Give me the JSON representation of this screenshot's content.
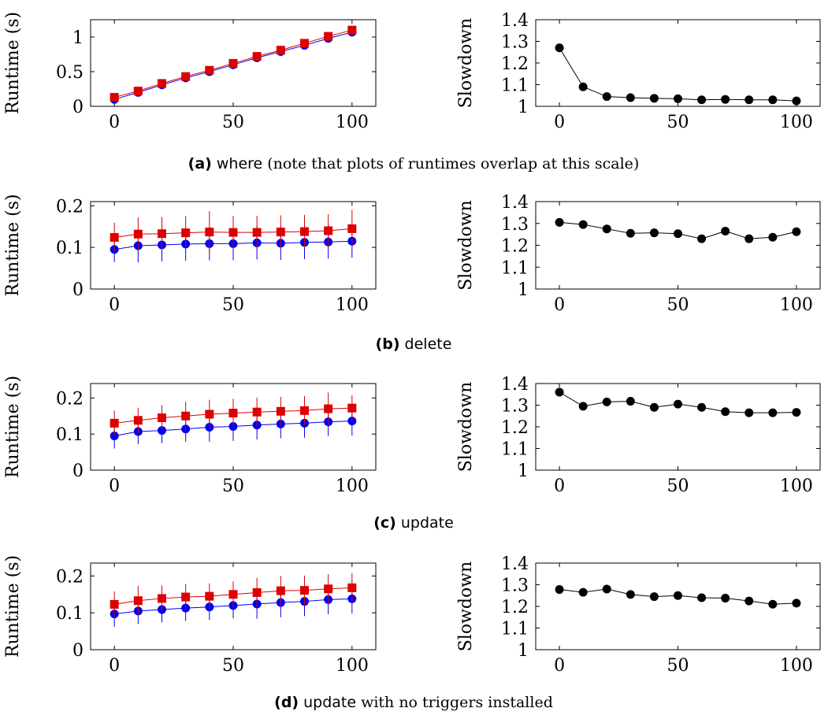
{
  "chart_data": [
    {
      "type": "line",
      "ylabel": "Runtime (s)",
      "x": [
        0,
        10,
        20,
        30,
        40,
        50,
        60,
        70,
        80,
        90,
        100
      ],
      "xticks": [
        0,
        50,
        100
      ],
      "xlim": [
        -10,
        110
      ],
      "ylim": [
        0,
        1.25
      ],
      "yticks": [
        0,
        0.5,
        1
      ],
      "ytick_labels": [
        "0",
        "0.5",
        "1"
      ],
      "series": [
        {
          "color": "#0000ee",
          "marker": "circle",
          "values": [
            0.1,
            0.2,
            0.31,
            0.41,
            0.5,
            0.6,
            0.7,
            0.79,
            0.88,
            0.98,
            1.07
          ],
          "err": [
            0,
            0,
            0,
            0,
            0,
            0,
            0,
            0,
            0,
            0,
            0
          ]
        },
        {
          "color": "#dd0000",
          "marker": "square",
          "values": [
            0.13,
            0.22,
            0.33,
            0.43,
            0.52,
            0.62,
            0.72,
            0.81,
            0.91,
            1.01,
            1.1
          ],
          "err": [
            0,
            0,
            0,
            0,
            0,
            0,
            0,
            0,
            0,
            0,
            0
          ]
        }
      ]
    },
    {
      "type": "line",
      "ylabel": "Slowdown",
      "x": [
        0,
        10,
        20,
        30,
        40,
        50,
        60,
        70,
        80,
        90,
        100
      ],
      "xticks": [
        0,
        50,
        100
      ],
      "xlim": [
        -10,
        110
      ],
      "ylim": [
        1,
        1.4
      ],
      "yticks": [
        1,
        1.1,
        1.2,
        1.3,
        1.4
      ],
      "ytick_labels": [
        "1",
        "1.1",
        "1.2",
        "1.3",
        "1.4"
      ],
      "series": [
        {
          "color": "#000000",
          "marker": "circle",
          "values": [
            1.27,
            1.09,
            1.045,
            1.04,
            1.037,
            1.035,
            1.03,
            1.032,
            1.03,
            1.03,
            1.025
          ]
        }
      ]
    },
    {
      "type": "line",
      "ylabel": "Runtime (s)",
      "x": [
        0,
        10,
        20,
        30,
        40,
        50,
        60,
        70,
        80,
        90,
        100
      ],
      "xticks": [
        0,
        50,
        100
      ],
      "xlim": [
        -10,
        110
      ],
      "ylim": [
        0,
        0.21
      ],
      "yticks": [
        0,
        0.1,
        0.2
      ],
      "ytick_labels": [
        "0",
        "0.1",
        "0.2"
      ],
      "series": [
        {
          "color": "#0000ee",
          "marker": "circle",
          "values": [
            0.095,
            0.104,
            0.106,
            0.108,
            0.109,
            0.109,
            0.111,
            0.11,
            0.112,
            0.113,
            0.115
          ],
          "err": [
            0.03,
            0.04,
            0.04,
            0.04,
            0.04,
            0.04,
            0.04,
            0.04,
            0.04,
            0.04,
            0.04
          ]
        },
        {
          "color": "#dd0000",
          "marker": "square",
          "values": [
            0.124,
            0.132,
            0.133,
            0.135,
            0.137,
            0.136,
            0.136,
            0.137,
            0.138,
            0.14,
            0.145
          ],
          "err": [
            0.035,
            0.04,
            0.04,
            0.04,
            0.05,
            0.04,
            0.04,
            0.04,
            0.04,
            0.04,
            0.045
          ]
        }
      ]
    },
    {
      "type": "line",
      "ylabel": "Slowdown",
      "x": [
        0,
        10,
        20,
        30,
        40,
        50,
        60,
        70,
        80,
        90,
        100
      ],
      "xticks": [
        0,
        50,
        100
      ],
      "xlim": [
        -10,
        110
      ],
      "ylim": [
        1,
        1.4
      ],
      "yticks": [
        1,
        1.1,
        1.2,
        1.3,
        1.4
      ],
      "ytick_labels": [
        "1",
        "1.1",
        "1.2",
        "1.3",
        "1.4"
      ],
      "series": [
        {
          "color": "#000000",
          "marker": "circle",
          "values": [
            1.305,
            1.295,
            1.275,
            1.255,
            1.257,
            1.253,
            1.23,
            1.265,
            1.23,
            1.237,
            1.262
          ]
        }
      ]
    },
    {
      "type": "line",
      "ylabel": "Runtime (s)",
      "x": [
        0,
        10,
        20,
        30,
        40,
        50,
        60,
        70,
        80,
        90,
        100
      ],
      "xticks": [
        0,
        50,
        100
      ],
      "xlim": [
        -10,
        110
      ],
      "ylim": [
        0,
        0.24
      ],
      "yticks": [
        0,
        0.1,
        0.2
      ],
      "ytick_labels": [
        "0",
        "0.1",
        "0.2"
      ],
      "series": [
        {
          "color": "#0000ee",
          "marker": "circle",
          "values": [
            0.095,
            0.107,
            0.11,
            0.114,
            0.119,
            0.121,
            0.125,
            0.128,
            0.13,
            0.134,
            0.136
          ],
          "err": [
            0.035,
            0.035,
            0.035,
            0.035,
            0.04,
            0.04,
            0.04,
            0.04,
            0.04,
            0.04,
            0.04
          ]
        },
        {
          "color": "#dd0000",
          "marker": "square",
          "values": [
            0.13,
            0.138,
            0.145,
            0.15,
            0.155,
            0.158,
            0.161,
            0.163,
            0.165,
            0.17,
            0.172
          ],
          "err": [
            0.035,
            0.035,
            0.035,
            0.04,
            0.04,
            0.04,
            0.04,
            0.04,
            0.04,
            0.045,
            0.035
          ]
        }
      ]
    },
    {
      "type": "line",
      "ylabel": "Slowdown",
      "x": [
        0,
        10,
        20,
        30,
        40,
        50,
        60,
        70,
        80,
        90,
        100
      ],
      "xticks": [
        0,
        50,
        100
      ],
      "xlim": [
        -10,
        110
      ],
      "ylim": [
        1,
        1.4
      ],
      "yticks": [
        1,
        1.1,
        1.2,
        1.3,
        1.4
      ],
      "ytick_labels": [
        "1",
        "1.1",
        "1.2",
        "1.3",
        "1.4"
      ],
      "series": [
        {
          "color": "#000000",
          "marker": "circle",
          "values": [
            1.36,
            1.295,
            1.315,
            1.318,
            1.29,
            1.305,
            1.29,
            1.27,
            1.265,
            1.265,
            1.267
          ]
        }
      ]
    },
    {
      "type": "line",
      "ylabel": "Runtime (s)",
      "x": [
        0,
        10,
        20,
        30,
        40,
        50,
        60,
        70,
        80,
        90,
        100
      ],
      "xticks": [
        0,
        50,
        100
      ],
      "xlim": [
        -10,
        110
      ],
      "ylim": [
        0,
        0.235
      ],
      "yticks": [
        0,
        0.1,
        0.2
      ],
      "ytick_labels": [
        "0",
        "0.1",
        "0.2"
      ],
      "series": [
        {
          "color": "#0000ee",
          "marker": "circle",
          "values": [
            0.097,
            0.105,
            0.109,
            0.113,
            0.116,
            0.12,
            0.124,
            0.128,
            0.131,
            0.136,
            0.138
          ],
          "err": [
            0.035,
            0.035,
            0.035,
            0.035,
            0.035,
            0.035,
            0.04,
            0.04,
            0.04,
            0.04,
            0.04
          ]
        },
        {
          "color": "#dd0000",
          "marker": "square",
          "values": [
            0.123,
            0.133,
            0.139,
            0.143,
            0.145,
            0.15,
            0.155,
            0.16,
            0.161,
            0.165,
            0.168
          ],
          "err": [
            0.035,
            0.04,
            0.035,
            0.035,
            0.035,
            0.035,
            0.04,
            0.04,
            0.04,
            0.04,
            0.04
          ]
        }
      ]
    },
    {
      "type": "line",
      "ylabel": "Slowdown",
      "x": [
        0,
        10,
        20,
        30,
        40,
        50,
        60,
        70,
        80,
        90,
        100
      ],
      "xticks": [
        0,
        50,
        100
      ],
      "xlim": [
        -10,
        110
      ],
      "ylim": [
        1,
        1.4
      ],
      "yticks": [
        1,
        1.1,
        1.2,
        1.3,
        1.4
      ],
      "ytick_labels": [
        "1",
        "1.1",
        "1.2",
        "1.3",
        "1.4"
      ],
      "series": [
        {
          "color": "#000000",
          "marker": "circle",
          "values": [
            1.278,
            1.265,
            1.28,
            1.255,
            1.245,
            1.25,
            1.24,
            1.238,
            1.225,
            1.21,
            1.215
          ]
        }
      ]
    }
  ],
  "captions": [
    {
      "label": "(a)",
      "text": "where",
      "note": "(note that plots of runtimes overlap at this scale)"
    },
    {
      "label": "(b)",
      "text": "delete",
      "note": ""
    },
    {
      "label": "(c)",
      "text": "update",
      "note": ""
    },
    {
      "label": "(d)",
      "text": "update",
      "note": "with no triggers installed"
    }
  ]
}
